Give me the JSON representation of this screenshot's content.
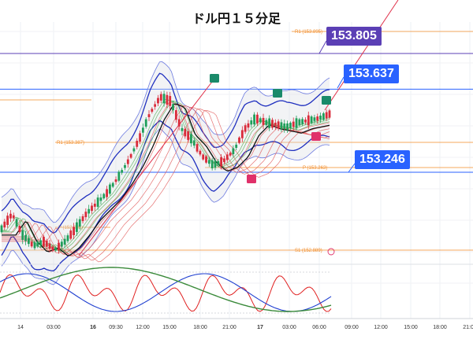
{
  "title": "ドル円１５分足",
  "callouts": {
    "top": {
      "value": "153.805",
      "color": "#5b3fb5"
    },
    "mid": {
      "value": "153.637",
      "color": "#2962ff"
    },
    "low": {
      "value": "153.246",
      "color": "#2962ff"
    }
  },
  "chart_data": {
    "type": "candlestick",
    "title": "ドル円１５分足",
    "x_tick_labels": [
      "14",
      "03:00",
      "16",
      "09:30",
      "12:00",
      "15:00",
      "18:00",
      "21:00",
      "17",
      "03:00",
      "06:00",
      "09:00",
      "12:00",
      "15:00",
      "18:00",
      "21:00"
    ],
    "pivot_levels": [
      {
        "label": "R1 (153.895)",
        "value": 153.895
      },
      {
        "label": "R1 (153.387)",
        "value": 153.387
      },
      {
        "label": "P (153.263)",
        "value": 153.263
      },
      {
        "label": "P (152.931)",
        "value": 152.931
      },
      {
        "label": "S1 (152.889)",
        "value": 152.889
      }
    ],
    "horizontal_lines": [
      153.805,
      153.637,
      153.246
    ],
    "price_path": [
      152.98,
      153.05,
      152.95,
      152.9,
      152.92,
      152.88,
      152.92,
      152.98,
      153.05,
      153.1,
      153.15,
      153.22,
      153.3,
      153.4,
      153.52,
      153.6,
      153.58,
      153.45,
      153.4,
      153.32,
      153.28,
      153.3,
      153.35,
      153.45,
      153.5,
      153.48,
      153.47,
      153.46,
      153.48,
      153.49,
      153.5,
      153.52
    ]
  },
  "oscillator": {
    "series": [
      {
        "name": "",
        "color": "#e02020"
      },
      {
        "name": "",
        "color": "#2040d0"
      },
      {
        "name": "",
        "color": "#3a8a3a"
      }
    ]
  }
}
